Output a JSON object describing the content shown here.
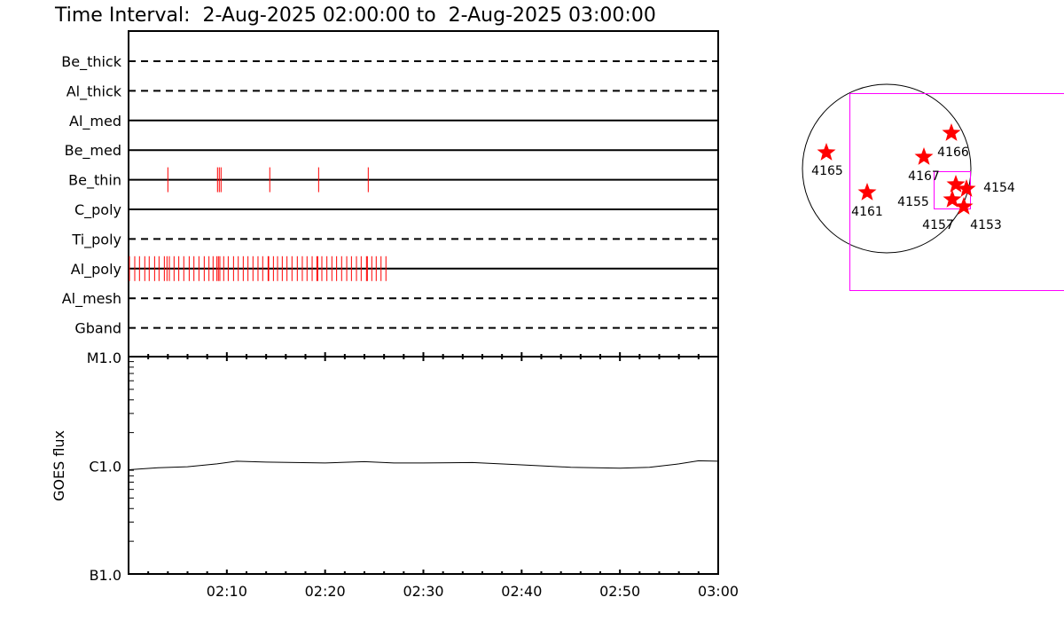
{
  "title": "Time Interval:  2-Aug-2025 02:00:00 to  2-Aug-2025 03:00:00",
  "colors": {
    "tick": "#ff0000",
    "fov": "#ff00ff",
    "axis": "#000000",
    "star": "#ff0000"
  },
  "chart_data": [
    {
      "type": "timeline",
      "x_range": [
        "02:00",
        "03:00"
      ],
      "rows": [
        {
          "label": "Be_thick",
          "style": "dashed",
          "times_min": []
        },
        {
          "label": "Al_thick",
          "style": "dashed",
          "times_min": []
        },
        {
          "label": "Al_med",
          "style": "solid",
          "times_min": []
        },
        {
          "label": "Be_med",
          "style": "solid",
          "times_min": []
        },
        {
          "label": "Be_thin",
          "style": "solid",
          "times_min": [
            4.0,
            9.05,
            9.23,
            9.41,
            14.37,
            19.34,
            24.39
          ]
        },
        {
          "label": "C_poly",
          "style": "solid",
          "times_min": []
        },
        {
          "label": "Ti_poly",
          "style": "dashed",
          "times_min": []
        },
        {
          "label": "Al_poly",
          "style": "solid",
          "times_min": [
            0.09,
            0.63,
            1.11,
            1.65,
            2.1,
            2.65,
            3.1,
            3.64,
            3.91,
            4.15,
            4.63,
            5.11,
            5.62,
            6.17,
            6.65,
            7.16,
            7.7,
            8.18,
            8.6,
            8.99,
            9.14,
            9.29,
            9.68,
            10.14,
            10.68,
            11.16,
            11.67,
            12.15,
            12.66,
            13.17,
            13.65,
            14.2,
            14.26,
            14.74,
            15.16,
            15.64,
            16.12,
            16.63,
            17.17,
            17.68,
            18.16,
            18.68,
            19.16,
            19.25,
            19.67,
            20.18,
            20.69,
            21.17,
            21.68,
            22.2,
            22.68,
            23.19,
            23.67,
            24.21,
            24.3,
            24.75,
            25.2,
            25.69,
            26.19
          ]
        },
        {
          "label": "Al_mesh",
          "style": "dashed",
          "times_min": []
        },
        {
          "label": "Gband",
          "style": "dashed",
          "times_min": []
        }
      ]
    },
    {
      "type": "line",
      "ylabel": "GOES flux",
      "yscale": "log",
      "ylim": [
        1e-07,
        1e-05
      ],
      "ytick_labels": [
        "B1.0",
        "C1.0",
        "M1.0"
      ],
      "xtick_labels": [
        "02:10",
        "02:20",
        "02:30",
        "02:40",
        "02:50",
        "03:00"
      ],
      "x_minutes": [
        0,
        3,
        6,
        9,
        11,
        14,
        17,
        20,
        24,
        27,
        30,
        35,
        40,
        45,
        50,
        53,
        56,
        58,
        60
      ],
      "values": [
        9.1e-07,
        9.5e-07,
        9.7e-07,
        1.03e-06,
        1.09e-06,
        1.07e-06,
        1.06e-06,
        1.05e-06,
        1.08e-06,
        1.05e-06,
        1.05e-06,
        1.06e-06,
        1.01e-06,
        9.6e-07,
        9.4e-07,
        9.6e-07,
        1.03e-06,
        1.1e-06,
        1.09e-06
      ]
    }
  ],
  "sun_map": {
    "regions": [
      "4165",
      "4161",
      "4167",
      "4166",
      "4155",
      "4154",
      "4157",
      "4153"
    ]
  }
}
